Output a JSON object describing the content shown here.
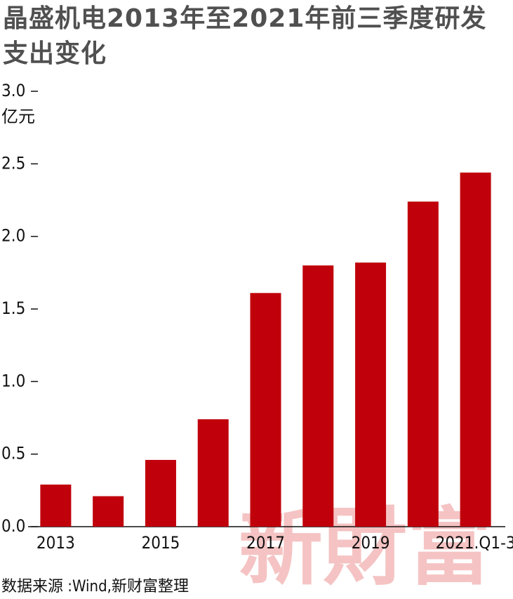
{
  "chart_data": {
    "type": "bar",
    "title": "晶盛机电2013年至2021年前三季度研发支出变化",
    "y_unit": "亿元",
    "categories": [
      "2013",
      null,
      "2015",
      null,
      "2017",
      null,
      "2019",
      null,
      "2021.Q1-3"
    ],
    "values": [
      0.29,
      0.21,
      0.46,
      0.74,
      1.61,
      1.8,
      1.82,
      2.24,
      2.44
    ],
    "color": "#c0000b",
    "ylim": [
      0,
      3
    ],
    "yticks": [
      {
        "value": 0,
        "label": "0.0"
      },
      {
        "value": 0.5,
        "label": "0.5"
      },
      {
        "value": 1,
        "label": "1.0"
      },
      {
        "value": 1.5,
        "label": "1.5"
      },
      {
        "value": 2,
        "label": "2.0"
      },
      {
        "value": 2.5,
        "label": "2.5"
      },
      {
        "value": 3,
        "label": "3.0"
      }
    ],
    "source": "数据来源 :Wind,新财富整理",
    "watermark": "新財富"
  }
}
